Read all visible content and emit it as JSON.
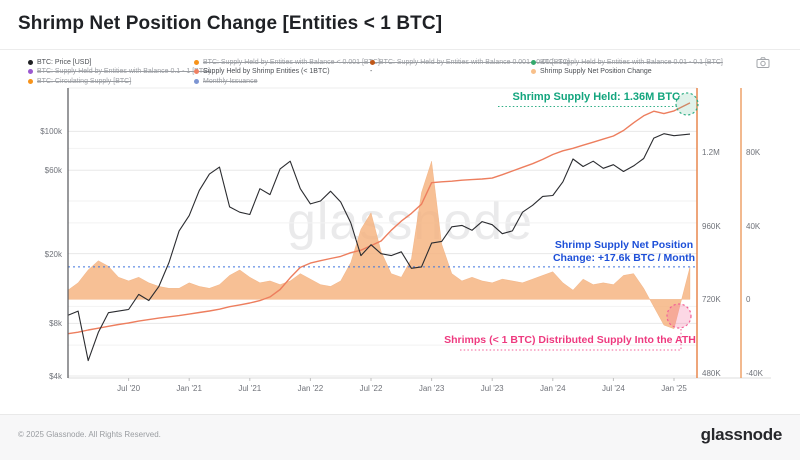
{
  "header": {
    "title": "Shrimp Net Position Change [Entities < 1 BTC]"
  },
  "legend": {
    "items": [
      {
        "id": "btc-price",
        "label": "BTC: Price [USD]",
        "color": "#1f2023",
        "struck": false,
        "col": 0,
        "row": 0
      },
      {
        "id": "supply-lt-0001",
        "label": "BTC: Supply Held by Entities with Balance < 0.001 [BTC]",
        "color": "#f7931a",
        "struck": true,
        "col": 1,
        "row": 0
      },
      {
        "id": "supply-0001-001",
        "label": "BTC: Supply Held by Entities with Balance 0.001 - 0.01 [BTC]",
        "color": "#c05717",
        "struck": true,
        "col": 2,
        "row": 0
      },
      {
        "id": "supply-001-01",
        "label": "BTC: Supply Held by Entities with Balance 0.01 - 0.1 [BTC]",
        "color": "#35a96d",
        "struck": true,
        "col": 3,
        "row": 0
      },
      {
        "id": "supply-01-1",
        "label": "BTC: Supply Held by Entities with Balance 0.1 - 1 [BTC]",
        "color": "#9b59d0",
        "struck": true,
        "col": 0,
        "row": 1
      },
      {
        "id": "shrimp-supply",
        "label": "Supply Held by Shrimp Entities (< 1BTC)",
        "color": "#ef8062",
        "struck": false,
        "col": 1,
        "row": 1
      },
      {
        "id": "hidden-series",
        "label": "-",
        "color": null,
        "struck": false,
        "col": 2,
        "row": 1
      },
      {
        "id": "shrimp-npc",
        "label": "Shrimp Supply Net Position Change",
        "color": "#f8c08a",
        "struck": false,
        "col": 3,
        "row": 1
      },
      {
        "id": "circulating-supply",
        "label": "BTC: Circulating Supply [BTC]",
        "color": "#f7931a",
        "struck": true,
        "col": 0,
        "row": 2
      },
      {
        "id": "monthly-issuance",
        "label": "Monthly Issuance",
        "color": "#7d95d2",
        "struck": true,
        "col": 1,
        "row": 2
      }
    ]
  },
  "annotations": {
    "supply_held": {
      "text": "Shrimp Supply Held: 1.36M BTC",
      "color": "#13a57e"
    },
    "net_position": {
      "line1": "Shrimp Supply Net Position",
      "line2": "Change: +17.6k BTC / Month",
      "color": "#1d4fd8",
      "value_k": 17.6
    },
    "distributed": {
      "text": "Shrimps (< 1 BTC) Distributed Supply Into the ATH",
      "color": "#ee3a7f"
    }
  },
  "watermark": {
    "text": "glassnode"
  },
  "footer": {
    "copyright": "© 2025 Glassnode. All Rights Reserved.",
    "logo": "glassnode"
  },
  "chart_data": {
    "type": "mixed",
    "title": "Shrimp Net Position Change [Entities < 1 BTC]",
    "legend_position": "top",
    "grid": true,
    "months": [
      "2020-01",
      "2020-02",
      "2020-03",
      "2020-04",
      "2020-05",
      "2020-06",
      "2020-07",
      "2020-08",
      "2020-09",
      "2020-10",
      "2020-11",
      "2020-12",
      "2021-01",
      "2021-02",
      "2021-03",
      "2021-04",
      "2021-05",
      "2021-06",
      "2021-07",
      "2021-08",
      "2021-09",
      "2021-10",
      "2021-11",
      "2021-12",
      "2022-01",
      "2022-02",
      "2022-03",
      "2022-04",
      "2022-05",
      "2022-06",
      "2022-07",
      "2022-08",
      "2022-09",
      "2022-10",
      "2022-11",
      "2022-12",
      "2023-01",
      "2023-02",
      "2023-03",
      "2023-04",
      "2023-05",
      "2023-06",
      "2023-07",
      "2023-08",
      "2023-09",
      "2023-10",
      "2023-11",
      "2023-12",
      "2024-01",
      "2024-02",
      "2024-03",
      "2024-04",
      "2024-05",
      "2024-06",
      "2024-07",
      "2024-08",
      "2024-09",
      "2024-10",
      "2024-11",
      "2024-12",
      "2025-01",
      "2025-02"
    ],
    "series": [
      {
        "name": "BTC: Price [USD]",
        "type": "line",
        "axis": "left_usd_log",
        "color": "#2b2c30",
        "values": [
          8900,
          9400,
          4900,
          7100,
          9200,
          9400,
          9600,
          11700,
          10800,
          13000,
          17800,
          27000,
          33000,
          46000,
          57000,
          62500,
          37000,
          34500,
          33500,
          47000,
          43500,
          61000,
          67500,
          47000,
          38500,
          40000,
          45500,
          39500,
          30000,
          19500,
          22500,
          20000,
          19500,
          20500,
          16500,
          16800,
          23000,
          23500,
          28500,
          29000,
          27200,
          30500,
          29300,
          26000,
          27000,
          34500,
          37800,
          42500,
          43000,
          51500,
          69500,
          63000,
          67500,
          61500,
          64500,
          59000,
          63500,
          70000,
          91500,
          97000,
          94500,
          96500
        ]
      },
      {
        "name": "Supply Held by Shrimp Entities (< 1BTC)",
        "type": "line",
        "axis": "right_supply_kbtc",
        "color": "#ed7e5e",
        "values": [
          608,
          613,
          620,
          626,
          632,
          638,
          643,
          649,
          654,
          659,
          663,
          667,
          672,
          677,
          682,
          688,
          696,
          702,
          708,
          716,
          728,
          752,
          790,
          824,
          838,
          846,
          853,
          860,
          872,
          880,
          895,
          910,
          945,
          975,
          1000,
          1030,
          1100,
          1103,
          1105,
          1108,
          1110,
          1112,
          1115,
          1126,
          1138,
          1150,
          1162,
          1176,
          1192,
          1204,
          1212,
          1222,
          1232,
          1242,
          1252,
          1270,
          1295,
          1318,
          1333,
          1325,
          1334,
          1360
        ]
      },
      {
        "name": "Shrimp Supply Net Position Change",
        "type": "area",
        "axis": "right_npc_kbtc_month",
        "color": "#f5b27e",
        "values": [
          5,
          9,
          16,
          21,
          18,
          12,
          10,
          12,
          9,
          7,
          6,
          6,
          9,
          7,
          6,
          8,
          13,
          16,
          12,
          9,
          10,
          8,
          10,
          14,
          11,
          8,
          7,
          10,
          20,
          38,
          47,
          26,
          14,
          12,
          22,
          58,
          75,
          30,
          14,
          10,
          12,
          10,
          9,
          11,
          10,
          9,
          11,
          13,
          15,
          9,
          5,
          11,
          8,
          9,
          8,
          13,
          14,
          6,
          -4,
          -14,
          -16,
          17.6
        ]
      }
    ],
    "axes": {
      "left": {
        "scale": "log",
        "unit": "USD",
        "ticks": [
          {
            "label": "$100k",
            "value": 100000
          },
          {
            "label": "$60k",
            "value": 60000
          },
          {
            "label": "$20k",
            "value": 20000
          },
          {
            "label": "$8k",
            "value": 8000
          },
          {
            "label": "$4k",
            "value": 4000
          }
        ],
        "grid_values": [
          100000,
          80000,
          60000,
          40000,
          30000,
          20000,
          10000,
          8000,
          6000,
          4000
        ]
      },
      "right_supply": {
        "scale": "linear",
        "unit": "BTC",
        "ticks": [
          {
            "label": "1.2M",
            "value": 1200
          },
          {
            "label": "960K",
            "value": 960
          },
          {
            "label": "720K",
            "value": 720
          },
          {
            "label": "480K",
            "value": 480
          }
        ]
      },
      "right_npc": {
        "scale": "linear",
        "unit": "BTC / month",
        "ticks": [
          {
            "label": "80K",
            "value": 80
          },
          {
            "label": "40K",
            "value": 40
          },
          {
            "label": "0",
            "value": 0
          },
          {
            "label": "-40K",
            "value": -40
          }
        ]
      },
      "x": {
        "ticks": [
          {
            "label": "Jul '20",
            "i": 6
          },
          {
            "label": "Jan '21",
            "i": 12
          },
          {
            "label": "Jul '21",
            "i": 18
          },
          {
            "label": "Jan '22",
            "i": 24
          },
          {
            "label": "Jul '22",
            "i": 30
          },
          {
            "label": "Jan '23",
            "i": 36
          },
          {
            "label": "Jul '23",
            "i": 42
          },
          {
            "label": "Jan '24",
            "i": 48
          },
          {
            "label": "Jul '24",
            "i": 54
          },
          {
            "label": "Jan '25",
            "i": 60
          }
        ]
      }
    },
    "highlights": {
      "supply_end_marker": {
        "color": "#2fae85",
        "value_label": "1.36M BTC"
      },
      "distribution_dip_marker": {
        "color": "#f25f97"
      },
      "npc_reference_line_k": 17.6
    }
  }
}
